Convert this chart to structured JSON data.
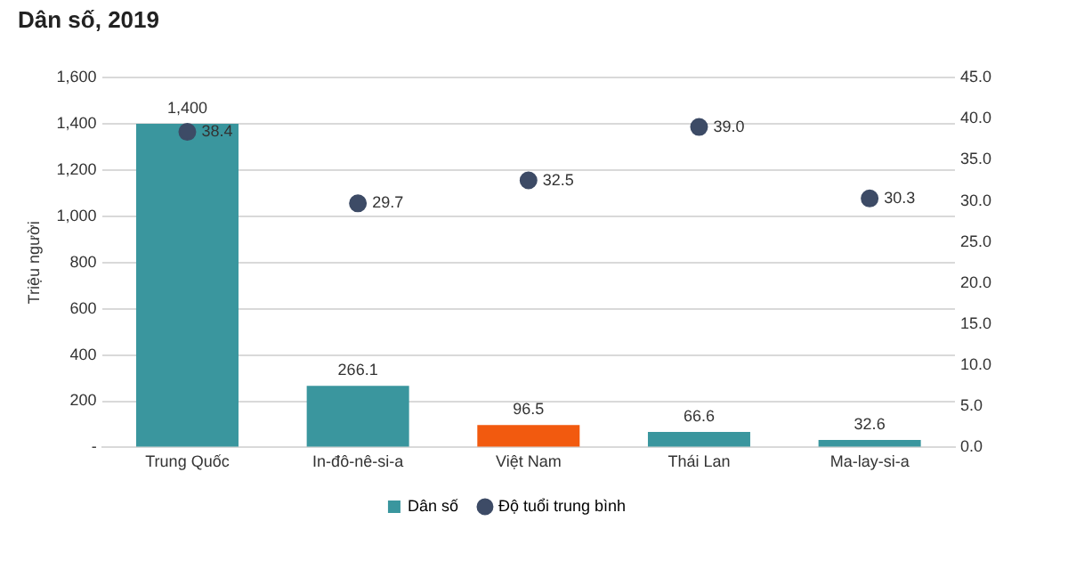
{
  "chart_data": {
    "type": "bar",
    "title": "Dân số, 2019",
    "ylabel": "Triệu người",
    "categories": [
      "Trung Quốc",
      "In-đô-nê-si-a",
      "Việt Nam",
      "Thái Lan",
      "Ma-lay-si-a"
    ],
    "series": [
      {
        "name": "Dân số",
        "color": "#3a969e",
        "colors": [
          "#3a969e",
          "#3a969e",
          "#f25a0f",
          "#3a969e",
          "#3a969e"
        ],
        "values": [
          1400,
          266.1,
          96.5,
          66.6,
          32.6
        ],
        "value_labels": [
          "1,400",
          "266.1",
          "96.5",
          "66.6",
          "32.6"
        ]
      },
      {
        "name": "Độ tuổi trung bình",
        "type": "scatter",
        "axis": "y2",
        "color": "#3d4b66",
        "x": [
          "Trung Quốc",
          "In-đô-nê-si-a",
          "Việt Nam",
          "Thái Lan",
          "Ma-lay-si-a"
        ],
        "values": [
          38.4,
          29.7,
          32.5,
          39.0,
          30.3
        ],
        "value_labels": [
          "38.4",
          "29.7",
          "32.5",
          "39.0",
          "30.3"
        ]
      }
    ],
    "ylim": [
      0,
      1600
    ],
    "yticks": [
      {
        "value": 0,
        "label": "-"
      },
      {
        "value": 200,
        "label": "200"
      },
      {
        "value": 400,
        "label": "400"
      },
      {
        "value": 600,
        "label": "600"
      },
      {
        "value": 800,
        "label": "800"
      },
      {
        "value": 1000,
        "label": "1,000"
      },
      {
        "value": 1200,
        "label": "1,200"
      },
      {
        "value": 1400,
        "label": "1,400"
      },
      {
        "value": 1600,
        "label": "1,600"
      }
    ],
    "y2lim": [
      0,
      45
    ],
    "y2ticks": [
      {
        "value": 0,
        "label": "0.0"
      },
      {
        "value": 5,
        "label": "5.0"
      },
      {
        "value": 10,
        "label": "10.0"
      },
      {
        "value": 15,
        "label": "15.0"
      },
      {
        "value": 20,
        "label": "20.0"
      },
      {
        "value": 25,
        "label": "25.0"
      },
      {
        "value": 30,
        "label": "30.0"
      },
      {
        "value": 35,
        "label": "35.0"
      },
      {
        "value": 40,
        "label": "40.0"
      },
      {
        "value": 45,
        "label": "45.0"
      }
    ],
    "grid": "y",
    "legend": "bottom",
    "marker": "circle"
  }
}
